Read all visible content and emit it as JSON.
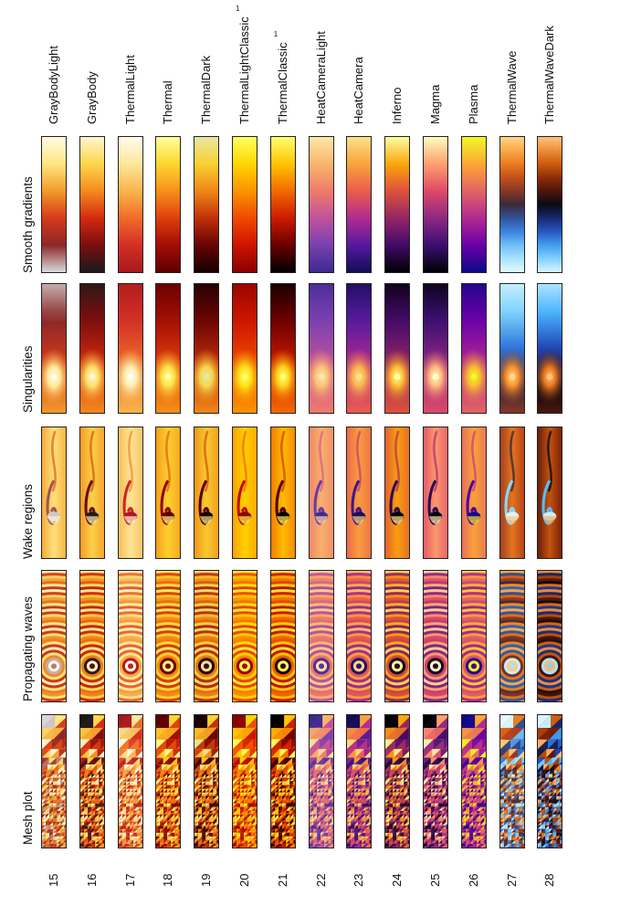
{
  "rows": [
    {
      "key": "smooth",
      "label": "Smooth gradients"
    },
    {
      "key": "singular",
      "label": "Singularities"
    },
    {
      "key": "wake",
      "label": "Wake regions"
    },
    {
      "key": "waves",
      "label": "Propagating waves"
    },
    {
      "key": "mesh",
      "label": "Mesh plot"
    }
  ],
  "colormaps": [
    {
      "name": "GrayBodyLight",
      "number": "15",
      "sup": "",
      "stops": [
        "#d9d9d9",
        "#8a2727",
        "#d63a1a",
        "#f29a2a",
        "#ffe680",
        "#fffbe6"
      ]
    },
    {
      "name": "GrayBody",
      "number": "16",
      "sup": "",
      "stops": [
        "#1a1a1a",
        "#7a0e0e",
        "#d32a0e",
        "#f48a1f",
        "#fbd74a",
        "#fff6cf"
      ]
    },
    {
      "name": "ThermalLight",
      "number": "17",
      "sup": "",
      "stops": [
        "#a8181d",
        "#d22f25",
        "#f06b2a",
        "#f9b44b",
        "#fde79a",
        "#fffbee"
      ]
    },
    {
      "name": "Thermal",
      "number": "18",
      "sup": "",
      "stops": [
        "#5c0000",
        "#a10d05",
        "#df3f0c",
        "#f79019",
        "#fcd62f",
        "#ffff9a"
      ]
    },
    {
      "name": "ThermalDark",
      "number": "19",
      "sup": "",
      "stops": [
        "#140000",
        "#680404",
        "#c0300a",
        "#f08618",
        "#f8d02f",
        "#e9e6a4"
      ]
    },
    {
      "name": "ThermalLightClassic",
      "number": "20",
      "sup": "1",
      "stops": [
        "#8a0000",
        "#cc1400",
        "#ef4a00",
        "#fb9300",
        "#ffd500",
        "#ffff60"
      ]
    },
    {
      "name": "ThermalClassic",
      "number": "21",
      "sup": "1",
      "stops": [
        "#000000",
        "#6a0000",
        "#cc1a00",
        "#f26a00",
        "#ffc400",
        "#ffff70"
      ]
    },
    {
      "name": "HeatCameraLight",
      "number": "22",
      "sup": "",
      "stops": [
        "#3c2a8e",
        "#7a3fb0",
        "#c0529c",
        "#ef7b6a",
        "#f9b56b",
        "#fde7a8"
      ]
    },
    {
      "name": "HeatCamera",
      "number": "23",
      "sup": "",
      "stops": [
        "#120d55",
        "#55199e",
        "#b02b90",
        "#eb5c4c",
        "#f8a33c",
        "#fde08a"
      ]
    },
    {
      "name": "Inferno",
      "number": "24",
      "sup": "",
      "stops": [
        "#000004",
        "#420a68",
        "#932667",
        "#dd513a",
        "#fca50a",
        "#fcffa4"
      ]
    },
    {
      "name": "Magma",
      "number": "25",
      "sup": "",
      "stops": [
        "#000004",
        "#3b0f70",
        "#8c2981",
        "#de4968",
        "#fe9f6d",
        "#fcfdbf"
      ]
    },
    {
      "name": "Plasma",
      "number": "26",
      "sup": "",
      "stops": [
        "#0d0887",
        "#6a00a8",
        "#b12a90",
        "#e16462",
        "#fca636",
        "#f0f921"
      ]
    },
    {
      "name": "ThermalWave",
      "number": "27",
      "sup": "",
      "stops": [
        "#e6faff",
        "#7fd3ff",
        "#2a6fd6",
        "#3b2a3a",
        "#b9401a",
        "#f58b1f",
        "#ffd58a"
      ]
    },
    {
      "name": "ThermalWaveDark",
      "number": "28",
      "sup": "",
      "stops": [
        "#d8f6ff",
        "#4ab6ff",
        "#1f3fb0",
        "#0a0a14",
        "#7a1e06",
        "#e06a10",
        "#ffc27a"
      ]
    }
  ]
}
